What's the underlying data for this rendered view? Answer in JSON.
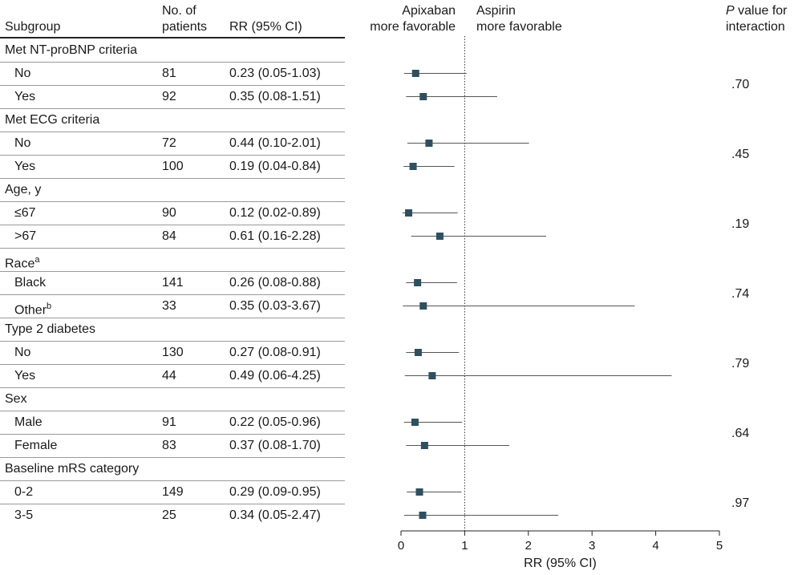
{
  "chart_data": {
    "type": "forest",
    "headers": {
      "subgroup": "Subgroup",
      "n_line1": "No. of",
      "n_line2": "patients",
      "rr": "RR (95% CI)",
      "left_fav_line1": "Apixaban",
      "left_fav_line2": "more favorable",
      "right_fav_line1": "Aspirin",
      "right_fav_line2": "more favorable",
      "p_line1_italic": "P",
      "p_line1_rest": " value for",
      "p_line2": "interaction"
    },
    "xlabel": "RR (95% CI)",
    "xlim": [
      0,
      5
    ],
    "xticks": [
      0,
      1,
      2,
      3,
      4,
      5
    ],
    "reference_line": 1,
    "marker_color": "#2f4f5f",
    "groups": [
      {
        "label": "Met NT-proBNP criteria",
        "p": ".70",
        "rows": [
          {
            "label": "No",
            "n": "81",
            "rr_text": "0.23 (0.05-1.03)",
            "rr": 0.23,
            "lo": 0.05,
            "hi": 1.03
          },
          {
            "label": "Yes",
            "n": "92",
            "rr_text": "0.35 (0.08-1.51)",
            "rr": 0.35,
            "lo": 0.08,
            "hi": 1.51
          }
        ]
      },
      {
        "label": "Met ECG criteria",
        "p": ".45",
        "rows": [
          {
            "label": "No",
            "n": "72",
            "rr_text": "0.44 (0.10-2.01)",
            "rr": 0.44,
            "lo": 0.1,
            "hi": 2.01
          },
          {
            "label": "Yes",
            "n": "100",
            "rr_text": "0.19 (0.04-0.84)",
            "rr": 0.19,
            "lo": 0.04,
            "hi": 0.84
          }
        ]
      },
      {
        "label": "Age, y",
        "p": ".19",
        "rows": [
          {
            "label": "≤67",
            "n": "90",
            "rr_text": "0.12 (0.02-0.89)",
            "rr": 0.12,
            "lo": 0.02,
            "hi": 0.89
          },
          {
            "label": ">67",
            "n": "84",
            "rr_text": "0.61 (0.16-2.28)",
            "rr": 0.61,
            "lo": 0.16,
            "hi": 2.28
          }
        ]
      },
      {
        "label": "Race",
        "sup": "a",
        "p": ".74",
        "rows": [
          {
            "label": "Black",
            "n": "141",
            "rr_text": "0.26 (0.08-0.88)",
            "rr": 0.26,
            "lo": 0.08,
            "hi": 0.88
          },
          {
            "label": "Other",
            "sup": "b",
            "n": "33",
            "rr_text": "0.35 (0.03-3.67)",
            "rr": 0.35,
            "lo": 0.03,
            "hi": 3.67
          }
        ]
      },
      {
        "label": "Type 2 diabetes",
        "p": ".79",
        "rows": [
          {
            "label": "No",
            "n": "130",
            "rr_text": "0.27 (0.08-0.91)",
            "rr": 0.27,
            "lo": 0.08,
            "hi": 0.91
          },
          {
            "label": "Yes",
            "n": "44",
            "rr_text": "0.49 (0.06-4.25)",
            "rr": 0.49,
            "lo": 0.06,
            "hi": 4.25
          }
        ]
      },
      {
        "label": "Sex",
        "p": ".64",
        "rows": [
          {
            "label": "Male",
            "n": "91",
            "rr_text": "0.22 (0.05-0.96)",
            "rr": 0.22,
            "lo": 0.05,
            "hi": 0.96
          },
          {
            "label": "Female",
            "n": "83",
            "rr_text": "0.37 (0.08-1.70)",
            "rr": 0.37,
            "lo": 0.08,
            "hi": 1.7
          }
        ]
      },
      {
        "label": "Baseline mRS category",
        "p": ".97",
        "rows": [
          {
            "label": "0-2",
            "n": "149",
            "rr_text": "0.29 (0.09-0.95)",
            "rr": 0.29,
            "lo": 0.09,
            "hi": 0.95
          },
          {
            "label": "3-5",
            "n": "25",
            "rr_text": "0.34 (0.05-2.47)",
            "rr": 0.34,
            "lo": 0.05,
            "hi": 2.47
          }
        ]
      }
    ]
  }
}
